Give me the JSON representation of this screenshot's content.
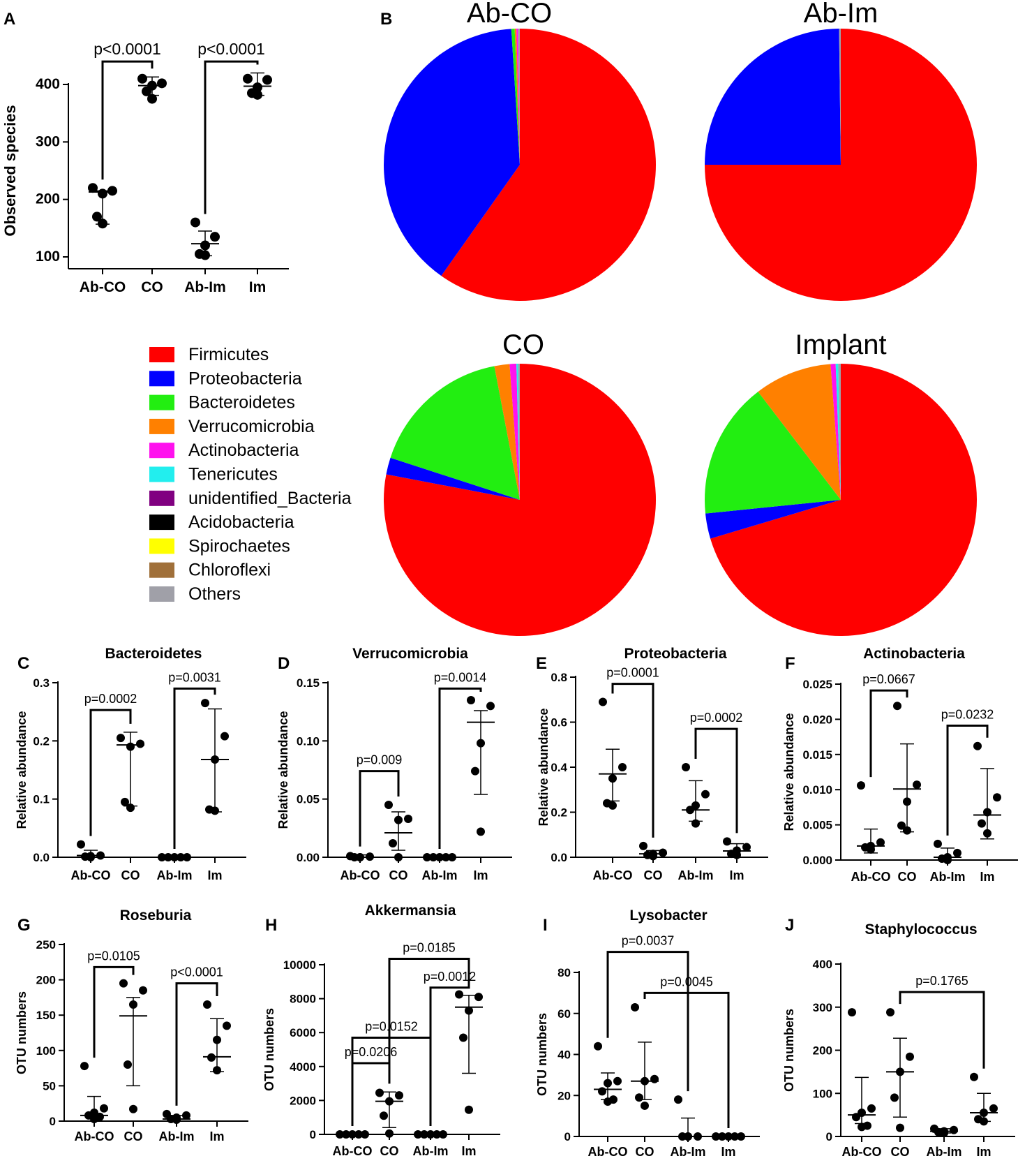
{
  "figure": {
    "panel_letters": {
      "a": "A",
      "b": "B",
      "c": "C",
      "d": "D",
      "e": "E",
      "f": "F",
      "g": "G",
      "h": "H",
      "i": "I",
      "j": "J"
    }
  },
  "legend": [
    {
      "name": "Firmicutes",
      "color": "#ff0000"
    },
    {
      "name": "Proteobacteria",
      "color": "#0000ff"
    },
    {
      "name": "Bacteroidetes",
      "color": "#22ee11"
    },
    {
      "name": "Verrucomicrobia",
      "color": "#ff8000"
    },
    {
      "name": "Actinobacteria",
      "color": "#ff11ee"
    },
    {
      "name": "Tenericutes",
      "color": "#22eeee"
    },
    {
      "name": "unidentified_Bacteria",
      "color": "#800080"
    },
    {
      "name": "Acidobacteria",
      "color": "#000000"
    },
    {
      "name": "Spirochaetes",
      "color": "#ffff00"
    },
    {
      "name": "Chloroflexi",
      "color": "#a0703a"
    },
    {
      "name": "Others",
      "color": "#a0a0a8"
    }
  ],
  "chart_data": [
    {
      "panel": "A",
      "type": "scatter",
      "title": "",
      "ylabel": "Observed species",
      "ylim": [
        90,
        440
      ],
      "ticks": [
        100,
        200,
        300,
        400
      ],
      "categories": [
        "Ab-CO",
        "CO",
        "Ab-Im",
        "Im"
      ],
      "groups": [
        {
          "points": [
            220,
            215,
            210,
            170,
            158
          ],
          "mean": 213,
          "sd": [
            157,
            215
          ]
        },
        {
          "points": [
            410,
            402,
            398,
            388,
            375
          ],
          "mean": 398,
          "sd": [
            381,
            413
          ]
        },
        {
          "points": [
            160,
            135,
            120,
            105,
            103
          ],
          "mean": 123,
          "sd": [
            102,
            145
          ]
        },
        {
          "points": [
            410,
            408,
            395,
            385,
            382
          ],
          "mean": 397,
          "sd": [
            381,
            420
          ]
        }
      ],
      "comparisons": [
        {
          "from": 0,
          "to": 1,
          "label": "p<0.0001",
          "level": 440
        },
        {
          "from": 2,
          "to": 3,
          "label": "p<0.0001",
          "level": 440
        }
      ]
    },
    {
      "panel": "B",
      "type": "pie",
      "pies": [
        {
          "title": "Ab-CO",
          "slices": [
            {
              "name": "Firmicutes",
              "value": 0.598
            },
            {
              "name": "Proteobacteria",
              "value": 0.392
            },
            {
              "name": "Bacteroidetes",
              "value": 0.004
            },
            {
              "name": "Verrucomicrobia",
              "value": 0.002
            },
            {
              "name": "Actinobacteria",
              "value": 0.002
            },
            {
              "name": "Others",
              "value": 0.002
            }
          ]
        },
        {
          "title": "Ab-Im",
          "slices": [
            {
              "name": "Firmicutes",
              "value": 0.75
            },
            {
              "name": "Proteobacteria",
              "value": 0.248
            },
            {
              "name": "Others",
              "value": 0.002
            }
          ]
        },
        {
          "title": "CO",
          "slices": [
            {
              "name": "Firmicutes",
              "value": 0.78
            },
            {
              "name": "Proteobacteria",
              "value": 0.02
            },
            {
              "name": "Bacteroidetes",
              "value": 0.17
            },
            {
              "name": "Verrucomicrobia",
              "value": 0.018
            },
            {
              "name": "Actinobacteria",
              "value": 0.008
            },
            {
              "name": "Tenericutes",
              "value": 0.002
            },
            {
              "name": "Others",
              "value": 0.002
            }
          ]
        },
        {
          "title": "Implant",
          "slices": [
            {
              "name": "Firmicutes",
              "value": 0.704
            },
            {
              "name": "Proteobacteria",
              "value": 0.03
            },
            {
              "name": "Bacteroidetes",
              "value": 0.162
            },
            {
              "name": "Verrucomicrobia",
              "value": 0.092
            },
            {
              "name": "Actinobacteria",
              "value": 0.006
            },
            {
              "name": "Tenericutes",
              "value": 0.003
            },
            {
              "name": "Others",
              "value": 0.003
            }
          ]
        }
      ]
    },
    {
      "panel": "C",
      "type": "scatter",
      "title": "Bacteroidetes",
      "ylabel": "Relative abundance",
      "ylim": [
        0,
        0.3
      ],
      "ticks": [
        0.0,
        0.1,
        0.2,
        0.3
      ],
      "tickLabels": [
        "0.0",
        "0.1",
        "0.2",
        "0.3"
      ],
      "categories": [
        "Ab-CO",
        "CO",
        "Ab-Im",
        "Im"
      ],
      "groups": [
        {
          "points": [
            0.022,
            0.003,
            0.002,
            0.001,
            0.0
          ],
          "mean": 0.003,
          "sd": [
            0.0,
            0.012
          ]
        },
        {
          "points": [
            0.205,
            0.195,
            0.19,
            0.095,
            0.085
          ],
          "mean": 0.193,
          "sd": [
            0.088,
            0.215
          ]
        },
        {
          "points": [
            0.0,
            0.0,
            0.0,
            0.0,
            0.0
          ],
          "mean": 0.0,
          "sd": [
            0.0,
            0.0
          ]
        },
        {
          "points": [
            0.265,
            0.208,
            0.168,
            0.082,
            0.08
          ],
          "mean": 0.168,
          "sd": [
            0.078,
            0.255
          ]
        }
      ],
      "comparisons": [
        {
          "from": 0,
          "to": 1,
          "label": "p=0.0002",
          "level": 0.253
        },
        {
          "from": 2,
          "to": 3,
          "label": "p=0.0031",
          "level": 0.29
        }
      ]
    },
    {
      "panel": "D",
      "type": "scatter",
      "title": "Verrucomicrobia",
      "ylabel": "Relative abundance",
      "ylim": [
        0,
        0.15
      ],
      "ticks": [
        0.0,
        0.05,
        0.1,
        0.15
      ],
      "tickLabels": [
        "0.00",
        "0.05",
        "0.10",
        "0.15"
      ],
      "categories": [
        "Ab-CO",
        "CO",
        "Ab-Im",
        "Im"
      ],
      "groups": [
        {
          "points": [
            0.001,
            0.0005,
            0.0,
            0.0,
            0.0
          ],
          "mean": 0.0,
          "sd": [
            0.0,
            0.002
          ]
        },
        {
          "points": [
            0.045,
            0.033,
            0.032,
            0.012,
            0.0
          ],
          "mean": 0.021,
          "sd": [
            0.006,
            0.039
          ]
        },
        {
          "points": [
            0.0,
            0.0,
            0.0,
            0.0,
            0.0
          ],
          "mean": 0.0,
          "sd": [
            0.0,
            0.0
          ]
        },
        {
          "points": [
            0.135,
            0.13,
            0.098,
            0.074,
            0.022
          ],
          "mean": 0.116,
          "sd": [
            0.054,
            0.126
          ]
        }
      ],
      "comparisons": [
        {
          "from": 0,
          "to": 1,
          "label": "p=0.009",
          "level": 0.074
        },
        {
          "from": 2,
          "to": 3,
          "label": "p=0.0014",
          "level": 0.145
        }
      ]
    },
    {
      "panel": "E",
      "type": "scatter",
      "title": "Proteobacteria",
      "ylabel": "Relative abundance",
      "ylim": [
        0,
        0.9
      ],
      "ticks": [
        0.0,
        0.2,
        0.4,
        0.6,
        0.8
      ],
      "tickLabels": [
        "0.0",
        "0.2",
        "0.4",
        "0.6",
        "0.8"
      ],
      "categories": [
        "Ab-CO",
        "CO",
        "Ab-Im",
        "Im"
      ],
      "groups": [
        {
          "points": [
            0.69,
            0.4,
            0.35,
            0.24,
            0.23
          ],
          "mean": 0.37,
          "sd": [
            0.25,
            0.48
          ]
        },
        {
          "points": [
            0.05,
            0.02,
            0.015,
            0.01,
            0.005
          ],
          "mean": 0.015,
          "sd": [
            0.0,
            0.03
          ]
        },
        {
          "points": [
            0.4,
            0.28,
            0.23,
            0.21,
            0.15
          ],
          "mean": 0.21,
          "sd": [
            0.16,
            0.34
          ]
        },
        {
          "points": [
            0.07,
            0.045,
            0.03,
            0.015,
            0.01
          ],
          "mean": 0.028,
          "sd": [
            0.0,
            0.06
          ]
        }
      ],
      "comparisons": [
        {
          "from": 0,
          "to": 1,
          "label": "p=0.0001",
          "level": 0.77
        },
        {
          "from": 2,
          "to": 3,
          "label": "p=0.0002",
          "level": 0.57
        }
      ]
    },
    {
      "panel": "F",
      "type": "scatter",
      "title": "Actinobacteria",
      "ylabel": "Relative abundance",
      "ylim": [
        0,
        0.025
      ],
      "ticks": [
        0.0,
        0.005,
        0.01,
        0.015,
        0.02,
        0.025
      ],
      "tickLabels": [
        "0.000",
        "0.005",
        "0.010",
        "0.015",
        "0.020",
        "0.025"
      ],
      "categories": [
        "Ab-CO",
        "CO",
        "Ab-Im",
        "Im"
      ],
      "groups": [
        {
          "points": [
            0.0106,
            0.0025,
            0.002,
            0.0018,
            0.0015
          ],
          "mean": 0.002,
          "sd": [
            0.001,
            0.0044
          ]
        },
        {
          "points": [
            0.0219,
            0.0107,
            0.0083,
            0.0049,
            0.0042
          ],
          "mean": 0.0101,
          "sd": [
            0.004,
            0.0165
          ]
        },
        {
          "points": [
            0.0023,
            0.001,
            0.0004,
            0.0002,
            0.0
          ],
          "mean": 0.0004,
          "sd": [
            0.0,
            0.0017
          ]
        },
        {
          "points": [
            0.0162,
            0.0089,
            0.0068,
            0.0052,
            0.0038
          ],
          "mean": 0.0064,
          "sd": [
            0.003,
            0.013
          ]
        }
      ],
      "comparisons": [
        {
          "from": 0,
          "to": 1,
          "label": "p=0.0667",
          "level": 0.0241
        },
        {
          "from": 2,
          "to": 3,
          "label": "p=0.0232",
          "level": 0.0191
        }
      ]
    },
    {
      "panel": "G",
      "type": "scatter",
      "title": "Roseburia",
      "ylabel": "OTU numbers",
      "ylim": [
        0,
        250
      ],
      "ticks": [
        0,
        50,
        100,
        150,
        200,
        250
      ],
      "categories": [
        "Ab-CO",
        "CO",
        "Ab-Im",
        "Im"
      ],
      "groups": [
        {
          "points": [
            78,
            18,
            12,
            8,
            6,
            3
          ],
          "mean": 8,
          "sd": [
            0,
            35
          ]
        },
        {
          "points": [
            195,
            185,
            165,
            80,
            17
          ],
          "mean": 149,
          "sd": [
            50,
            175
          ]
        },
        {
          "points": [
            10,
            8,
            5,
            3,
            2
          ],
          "mean": 3,
          "sd": [
            0,
            8
          ]
        },
        {
          "points": [
            165,
            135,
            115,
            90,
            72
          ],
          "mean": 91,
          "sd": [
            70,
            145
          ]
        }
      ],
      "comparisons": [
        {
          "from": 0,
          "to": 1,
          "label": "p=0.0105",
          "level": 218
        },
        {
          "from": 2,
          "to": 3,
          "label": "p<0.0001",
          "level": 195
        }
      ]
    },
    {
      "panel": "H",
      "type": "scatter",
      "title": "Akkermansia",
      "ylabel": "OTU numbers",
      "ylim": [
        0,
        10000
      ],
      "ticks": [
        0,
        2000,
        4000,
        6000,
        8000,
        10000
      ],
      "categories": [
        "Ab-CO",
        "CO",
        "Ab-Im",
        "Im"
      ],
      "groups": [
        {
          "points": [
            0,
            0,
            0,
            0,
            0
          ],
          "mean": 0,
          "sd": [
            0,
            0
          ]
        },
        {
          "points": [
            2450,
            2300,
            1950,
            1100,
            50
          ],
          "mean": 1950,
          "sd": [
            400,
            2500
          ]
        },
        {
          "points": [
            0,
            0,
            0,
            0,
            0
          ],
          "mean": 0,
          "sd": [
            0,
            0
          ]
        },
        {
          "points": [
            8250,
            8100,
            7300,
            5700,
            1450
          ],
          "mean": 7500,
          "sd": [
            3600,
            8200
          ]
        }
      ],
      "comparisons": [
        {
          "from": 0,
          "to": 1,
          "label": "p=0.0206",
          "level": 4200
        },
        {
          "from": 0,
          "to": 2,
          "label": "p=0.0152",
          "level": 5700
        },
        {
          "from": 2,
          "to": 3,
          "label": "p=0.0012",
          "level": 8650
        },
        {
          "from": 1,
          "to": 3,
          "label": "p=0.0185",
          "level": 10350
        }
      ]
    },
    {
      "panel": "I",
      "type": "scatter",
      "title": "Lysobacter",
      "ylabel": "OTU numbers",
      "ylim": [
        0,
        80
      ],
      "ticks": [
        0,
        20,
        40,
        60,
        80
      ],
      "categories": [
        "Ab-CO",
        "CO",
        "Ab-Im",
        "Im"
      ],
      "groups": [
        {
          "points": [
            44,
            27,
            26,
            22,
            18,
            17
          ],
          "mean": 23,
          "sd": [
            18,
            31
          ]
        },
        {
          "points": [
            63,
            28,
            27,
            19,
            15
          ],
          "mean": 27,
          "sd": [
            18,
            46
          ]
        },
        {
          "points": [
            18,
            0,
            0,
            0,
            0
          ],
          "mean": 0,
          "sd": [
            0,
            9
          ]
        },
        {
          "points": [
            0,
            0,
            0,
            0,
            0
          ],
          "mean": 0,
          "sd": [
            0,
            0
          ]
        }
      ],
      "comparisons": [
        {
          "from": 0,
          "to": 2,
          "label": "p=0.0037",
          "level": 90
        },
        {
          "from": 1,
          "to": 3,
          "label": "p=0.0045",
          "level": 70
        }
      ]
    },
    {
      "panel": "J",
      "type": "scatter",
      "title": "Staphylococcus",
      "ylabel": "OTU numbers",
      "ylim": [
        0,
        400
      ],
      "ticks": [
        0,
        100,
        200,
        300,
        400
      ],
      "categories": [
        "Ab-CO",
        "CO",
        "Ab-Im",
        "Im"
      ],
      "groups": [
        {
          "points": [
            288,
            65,
            55,
            45,
            25,
            22
          ],
          "mean": 50,
          "sd": [
            30,
            137
          ]
        },
        {
          "points": [
            288,
            185,
            150,
            90,
            20
          ],
          "mean": 150,
          "sd": [
            45,
            228
          ]
        },
        {
          "points": [
            18,
            15,
            12,
            10,
            8
          ],
          "mean": 12,
          "sd": [
            8,
            18
          ]
        },
        {
          "points": [
            138,
            65,
            55,
            40,
            35
          ],
          "mean": 55,
          "sd": [
            35,
            100
          ]
        }
      ],
      "comparisons": [
        {
          "from": 1,
          "to": 3,
          "label": "p=0.1765",
          "level": 335
        }
      ]
    }
  ]
}
